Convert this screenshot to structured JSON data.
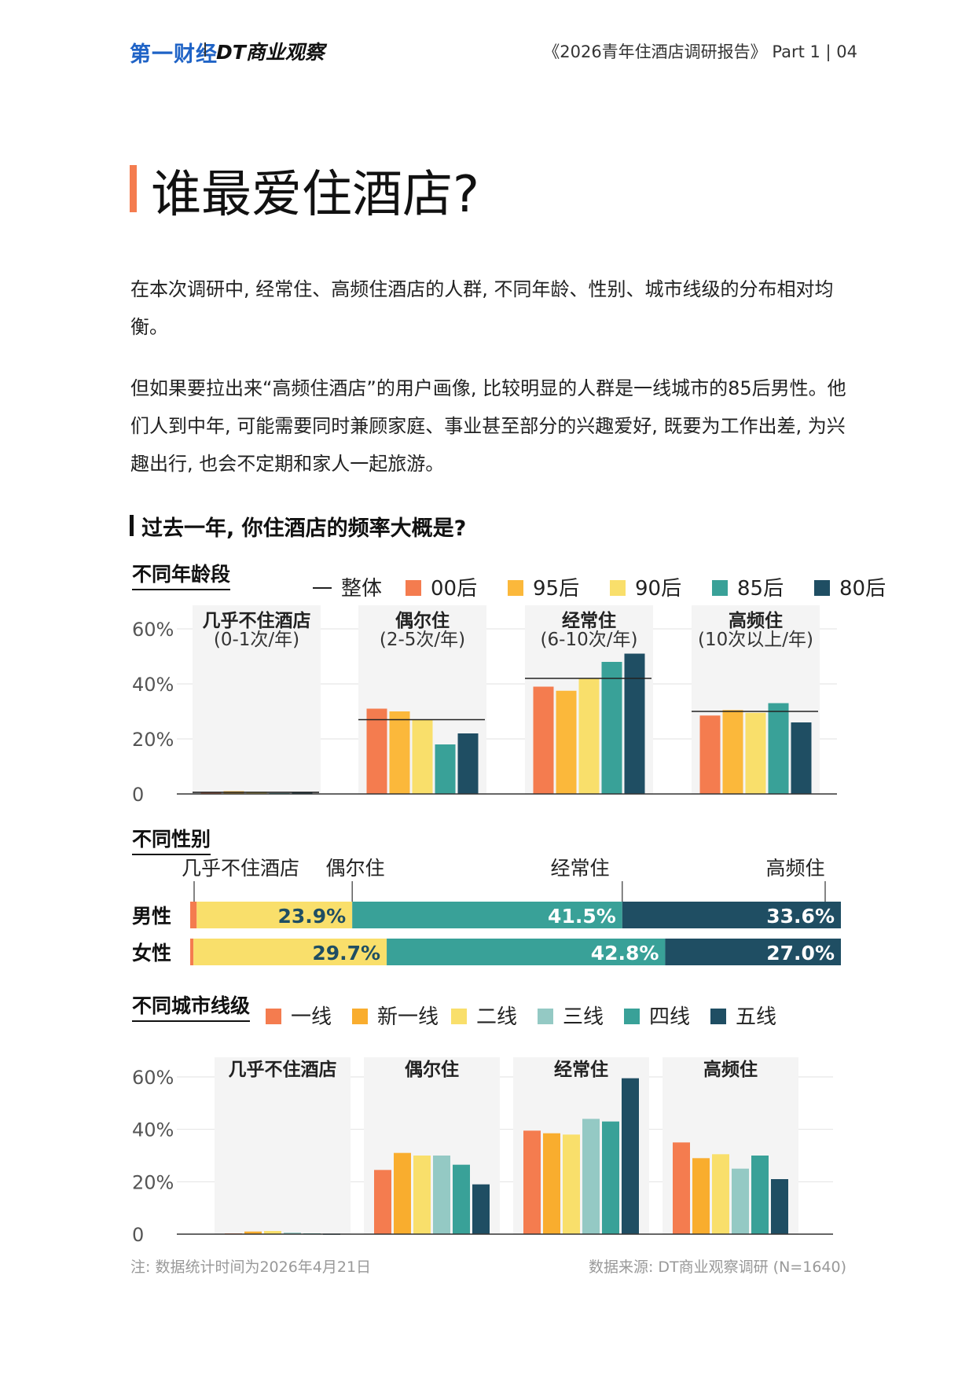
{
  "header": {
    "logo_left": "第一财经",
    "logo_right": "DT商业观察",
    "report": "《2026青年住酒店调研报告》  Part 1  |  04"
  },
  "page_title": "谁最爱住酒店?",
  "paragraphs": [
    "在本次调研中, 经常住、高频住酒店的人群, 不同年龄、性别、城市线级的分布相对均衡。",
    "但如果要拉出来“高频住酒店”的用户画像, 比较明显的人群是一线城市的85后男性。他们人到中年, 可能需要同时兼顾家庭、事业甚至部分的兴趣爱好, 既要为工作出差, 为兴趣出行, 也会不定期和家人一起旅游。"
  ],
  "question": "过去一年, 你住酒店的频率大概是?",
  "footer": {
    "note": "注: 数据统计时间为2026年4月21日",
    "source": "数据来源: DT商业观察调研 (N=1640)"
  },
  "chart_data": [
    {
      "type": "bar",
      "title": "不同年龄段",
      "categories": [
        "几乎不住酒店",
        "偶尔住",
        "经常住",
        "高频住"
      ],
      "category_sublabels": [
        "(0-1次/年)",
        "(2-5次/年)",
        "(6-10次/年)",
        "(10次以上/年)"
      ],
      "yticks": [
        "0",
        "20%",
        "40%",
        "60%"
      ],
      "ylim": [
        0,
        60
      ],
      "grid": true,
      "legend": "top-right",
      "overall": {
        "name": "整体",
        "values": [
          0.6,
          27,
          42,
          30
        ]
      },
      "series": [
        {
          "name": "00后",
          "color": "#f47c4f",
          "values": [
            0.5,
            31,
            39,
            28.5
          ]
        },
        {
          "name": "95后",
          "color": "#fbb83b",
          "values": [
            1,
            30,
            37.5,
            30.5
          ]
        },
        {
          "name": "90后",
          "color": "#f9df6b",
          "values": [
            0.8,
            27,
            42,
            29.5
          ]
        },
        {
          "name": "85后",
          "color": "#39a198",
          "values": [
            0.3,
            18,
            48,
            33
          ]
        },
        {
          "name": "80后",
          "color": "#1f4e63",
          "values": [
            0.7,
            22,
            51,
            26
          ]
        }
      ]
    },
    {
      "type": "stacked-bar",
      "title": "不同性别",
      "categories": [
        "几乎不住酒店",
        "偶尔住",
        "经常住",
        "高频住"
      ],
      "colors": [
        "#f47c4f",
        "#f9df6b",
        "#39a198",
        "#1f4e63"
      ],
      "groups": [
        {
          "name": "男性",
          "values": [
            1.0,
            23.9,
            41.5,
            33.6
          ],
          "labels": [
            "",
            "23.9%",
            "41.5%",
            "33.6%"
          ]
        },
        {
          "name": "女性",
          "values": [
            0.5,
            29.7,
            42.8,
            27.0
          ],
          "labels": [
            "",
            "29.7%",
            "42.8%",
            "27.0%"
          ]
        }
      ]
    },
    {
      "type": "bar",
      "title": "不同城市线级",
      "categories": [
        "几乎不住酒店",
        "偶尔住",
        "经常住",
        "高频住"
      ],
      "yticks": [
        "0",
        "20%",
        "40%",
        "60%"
      ],
      "ylim": [
        0,
        60
      ],
      "grid": true,
      "legend": "top-right",
      "series": [
        {
          "name": "一线",
          "color": "#f47c4f",
          "values": [
            0.3,
            24.5,
            39.5,
            35
          ]
        },
        {
          "name": "新一线",
          "color": "#f9ad2e",
          "values": [
            1,
            31,
            38.5,
            29
          ]
        },
        {
          "name": "二线",
          "color": "#f9df6b",
          "values": [
            1.2,
            30,
            38,
            30.5
          ]
        },
        {
          "name": "三线",
          "color": "#94c9c4",
          "values": [
            0.6,
            30,
            44,
            25
          ]
        },
        {
          "name": "四线",
          "color": "#39a198",
          "values": [
            0.3,
            26.5,
            43,
            30
          ]
        },
        {
          "name": "五线",
          "color": "#1f4e63",
          "values": [
            0.2,
            19,
            59.5,
            21
          ]
        }
      ]
    }
  ]
}
